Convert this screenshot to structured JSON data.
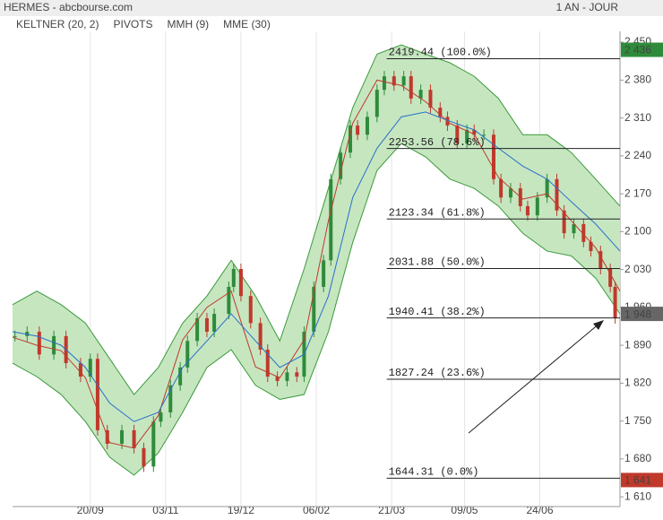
{
  "chart_data": {
    "type": "candlestick",
    "header": {
      "title": "HERMES - abcbourse.com",
      "period": "1 AN - JOUR"
    },
    "xlim": [
      0,
      250
    ],
    "xticks": [
      {
        "value": 32,
        "label": "20/09"
      },
      {
        "value": 63,
        "label": "03/11"
      },
      {
        "value": 94,
        "label": "19/12"
      },
      {
        "value": 125,
        "label": "06/02"
      },
      {
        "value": 156,
        "label": "21/03"
      },
      {
        "value": 186,
        "label": "09/05"
      },
      {
        "value": 217,
        "label": "24/06"
      }
    ],
    "ylim": [
      1592,
      2470
    ],
    "yticks": [
      {
        "value": 1610,
        "label": "1 610"
      },
      {
        "value": 1680,
        "label": "1 680"
      },
      {
        "value": 1750,
        "label": "1 750"
      },
      {
        "value": 1820,
        "label": "1 820"
      },
      {
        "value": 1890,
        "label": "1 890"
      },
      {
        "value": 1960,
        "label": "1 960"
      },
      {
        "value": 2030,
        "label": "2 030"
      },
      {
        "value": 2100,
        "label": "2 100"
      },
      {
        "value": 2170,
        "label": "2 170"
      },
      {
        "value": 2240,
        "label": "2 240"
      },
      {
        "value": 2310,
        "label": "2 310"
      },
      {
        "value": 2380,
        "label": "2 380"
      },
      {
        "value": 2450,
        "label": "2 450"
      }
    ],
    "grid": true,
    "price": {
      "up_color": "#2e8b3a",
      "down_color": "#c0392b",
      "x": [
        1,
        6,
        11,
        17,
        22,
        28,
        32,
        35,
        39,
        45,
        50,
        54,
        58,
        61,
        65,
        69,
        72,
        76,
        80,
        83,
        89,
        91,
        94,
        98,
        102,
        105,
        109,
        113,
        117,
        120,
        124,
        128,
        131,
        135,
        139,
        142,
        146,
        150,
        153,
        157,
        161,
        164,
        168,
        172,
        176,
        179,
        183,
        187,
        190,
        194,
        198,
        201,
        205,
        209,
        212,
        216,
        220,
        224,
        227,
        231,
        235,
        238,
        242,
        246,
        248
      ],
      "values": [
        1907,
        1915,
        1873,
        1907,
        1857,
        1832,
        1865,
        1733,
        1708,
        1733,
        1700,
        1666,
        1749,
        1766,
        1816,
        1849,
        1898,
        1940,
        1915,
        1948,
        1998,
        2031,
        1981,
        1931,
        1882,
        1832,
        1824,
        1840,
        1832,
        1915,
        1998,
        2047,
        2197,
        2246,
        2296,
        2279,
        2312,
        2362,
        2387,
        2370,
        2387,
        2346,
        2362,
        2329,
        2312,
        2296,
        2263,
        2288,
        2279,
        2279,
        2197,
        2163,
        2180,
        2147,
        2130,
        2163,
        2197,
        2139,
        2097,
        2114,
        2081,
        2064,
        2031,
        1998,
        1940
      ]
    },
    "keltner": {
      "name": "KELTNER (20, 2)",
      "color": "#3a9a3a",
      "fill": "#c6e6c0",
      "x": [
        0,
        10,
        20,
        30,
        40,
        50,
        60,
        70,
        80,
        90,
        100,
        110,
        120,
        130,
        140,
        150,
        160,
        170,
        180,
        190,
        200,
        210,
        220,
        230,
        240,
        250
      ],
      "upper": [
        1965,
        1990,
        1965,
        1931,
        1865,
        1799,
        1849,
        1931,
        1981,
        2047,
        1981,
        1898,
        2031,
        2180,
        2329,
        2428,
        2445,
        2428,
        2412,
        2387,
        2346,
        2279,
        2279,
        2246,
        2197,
        2147
      ],
      "lower": [
        1857,
        1832,
        1799,
        1749,
        1683,
        1650,
        1691,
        1766,
        1849,
        1882,
        1816,
        1790,
        1799,
        1915,
        2080,
        2213,
        2263,
        2238,
        2197,
        2180,
        2147,
        2097,
        2064,
        2055,
        2014,
        1948
      ]
    },
    "pivots": {
      "name": "PIVOTS",
      "color": "#555555",
      "start": 154,
      "levels": [
        {
          "value": 2419.44,
          "label": "2419.44  (100.0%)"
        },
        {
          "value": 2253.56,
          "label": "2253.56  (78.6%)"
        },
        {
          "value": 2123.34,
          "label": "2123.34  (61.8%)"
        },
        {
          "value": 2031.88,
          "label": "2031.88  (50.0%)"
        },
        {
          "value": 1940.41,
          "label": "1940.41  (38.2%)"
        },
        {
          "value": 1827.24,
          "label": "1827.24  (23.6%)"
        },
        {
          "value": 1644.31,
          "label": "1644.31  (0.0%)"
        }
      ]
    },
    "mmh": {
      "name": "MMH (9)",
      "color": "#c0392b",
      "x": [
        0,
        10,
        20,
        30,
        40,
        50,
        60,
        70,
        80,
        90,
        100,
        110,
        120,
        130,
        140,
        150,
        160,
        170,
        180,
        190,
        200,
        210,
        220,
        230,
        240,
        250
      ],
      "values": [
        1905,
        1890,
        1880,
        1830,
        1710,
        1700,
        1760,
        1900,
        1960,
        1990,
        1850,
        1830,
        1900,
        2120,
        2300,
        2380,
        2370,
        2340,
        2300,
        2280,
        2200,
        2160,
        2170,
        2120,
        2070,
        1990
      ]
    },
    "mme": {
      "name": "MME (30)",
      "color": "#2a6fc9",
      "x": [
        0,
        10,
        20,
        30,
        40,
        50,
        60,
        70,
        80,
        90,
        100,
        110,
        120,
        130,
        140,
        150,
        160,
        170,
        180,
        190,
        200,
        210,
        220,
        230,
        240,
        250
      ],
      "values": [
        1915,
        1907,
        1890,
        1849,
        1783,
        1749,
        1766,
        1849,
        1898,
        1948,
        1898,
        1849,
        1873,
        1981,
        2163,
        2254,
        2312,
        2321,
        2304,
        2288,
        2254,
        2221,
        2197,
        2155,
        2114,
        2064
      ]
    },
    "tags": [
      {
        "value": 2436,
        "label": "2 436",
        "color": "#2e8b3a"
      },
      {
        "value": 1948,
        "label": "1 948",
        "color": "#666666"
      },
      {
        "value": 1641,
        "label": "1 641",
        "color": "#c0392b"
      }
    ]
  }
}
